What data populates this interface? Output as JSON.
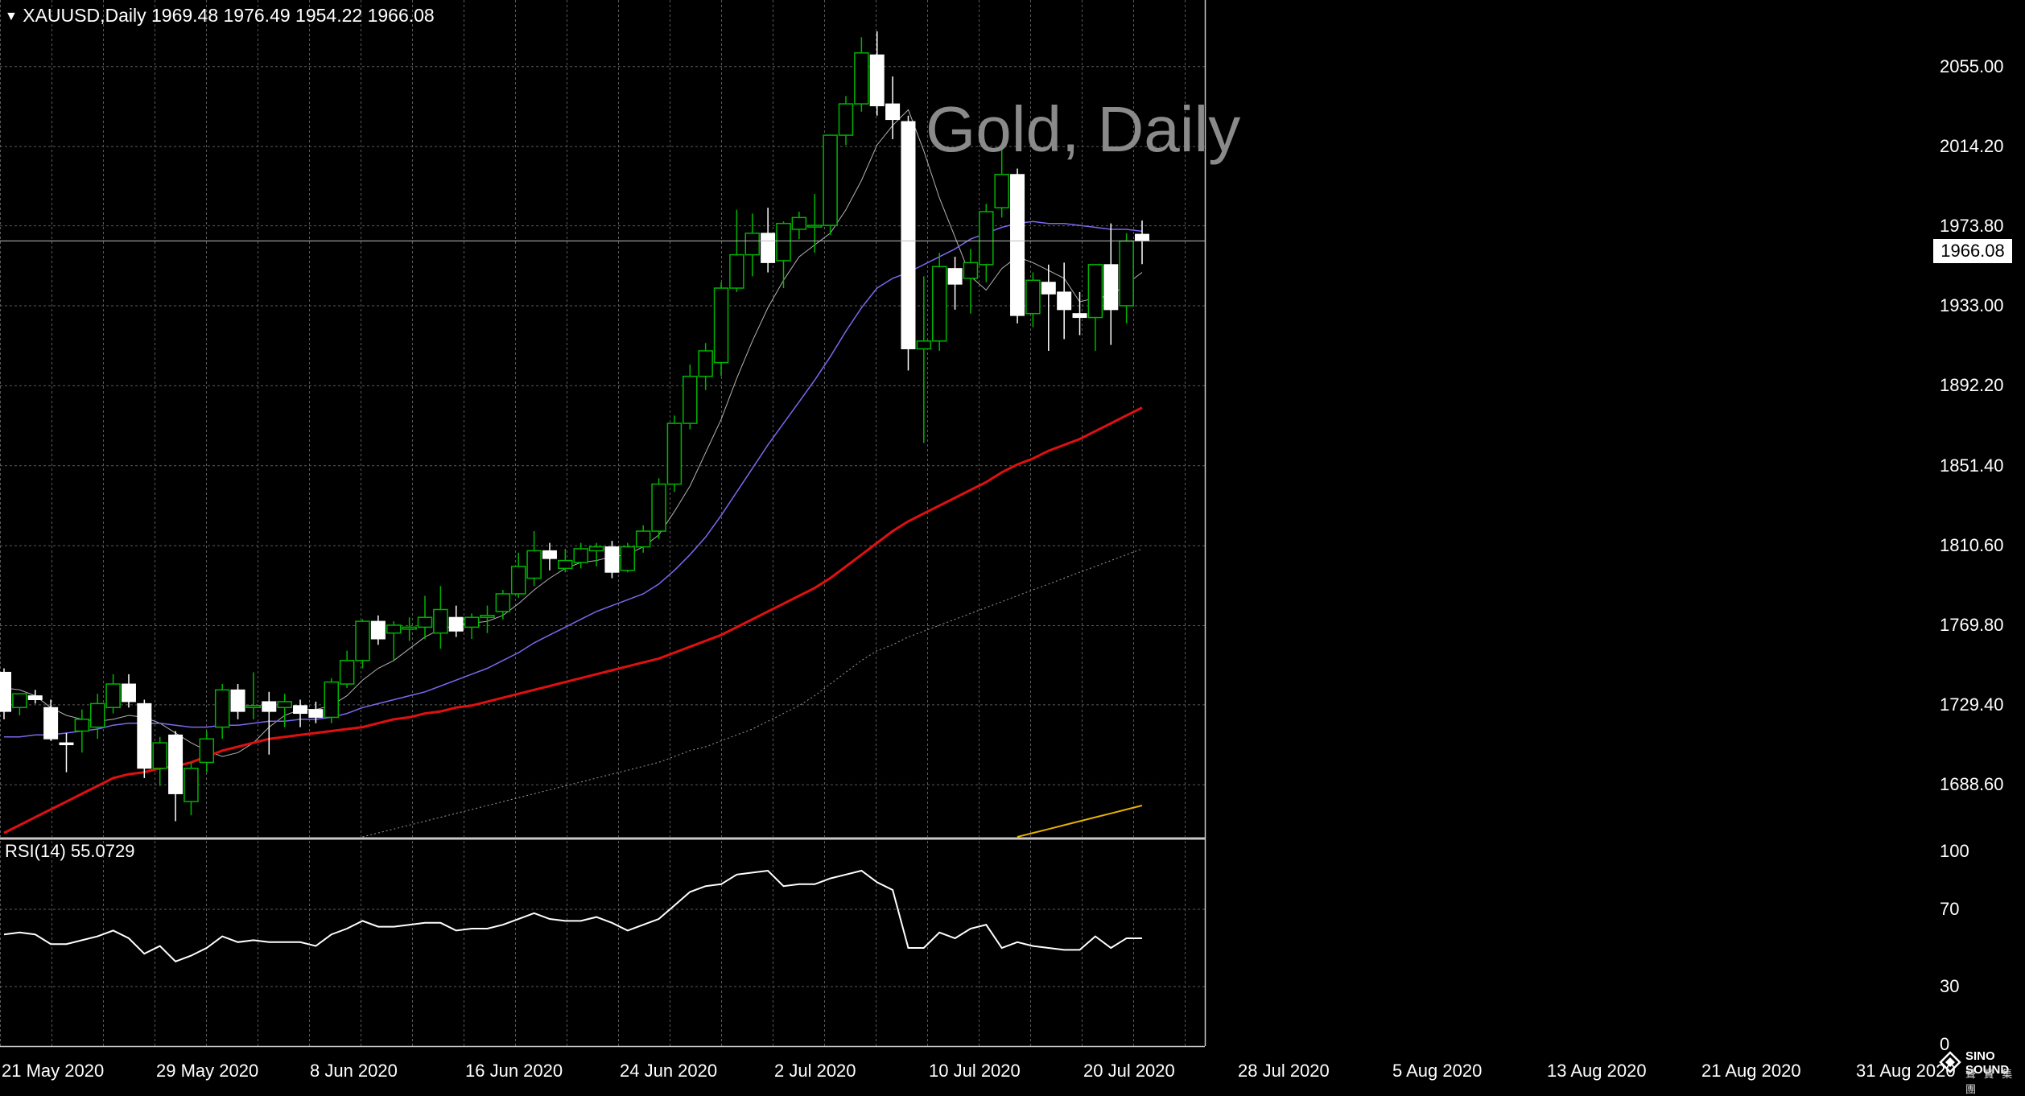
{
  "header": {
    "symbol_line": "XAUUSD,Daily  1969.48 1976.49 1954.22 1966.08"
  },
  "watermark": "Gold, Daily",
  "current_price_label": "1966.08",
  "rsi_label": "RSI(14) 55.0729",
  "logo": {
    "name": "SINO SOUND",
    "sub": "聲 寶 集 團"
  },
  "colors": {
    "background": "#000000",
    "grid": "#5a5a5a",
    "bull_candle": "#00b400",
    "bear_candle": "#ffffff",
    "ma_fast": "#b4b4b4",
    "ma_20": "#7b68ee",
    "ma_50": "#e01010",
    "ma_100": "#9a9a9a",
    "ma_200": "#e6b000",
    "rsi_line": "#ffffff"
  },
  "chart_data": [
    {
      "type": "candlestick",
      "title": "XAUUSD,Daily",
      "y_ticks": [
        "2055.00",
        "2014.20",
        "1973.80",
        "1933.00",
        "1892.20",
        "1851.40",
        "1810.60",
        "1769.80",
        "1729.40",
        "1688.60"
      ],
      "ylim": [
        1662,
        2089
      ],
      "x_ticks": [
        "21 May 2020",
        "29 May 2020",
        "8 Jun 2020",
        "16 Jun 2020",
        "24 Jun 2020",
        "2 Jul 2020",
        "10 Jul 2020",
        "20 Jul 2020",
        "28 Jul 2020",
        "5 Aug 2020",
        "13 Aug 2020",
        "21 Aug 2020",
        "31 Aug 2020"
      ],
      "candles": [
        {
          "o": 1746,
          "h": 1748,
          "l": 1722,
          "c": 1726
        },
        {
          "o": 1728,
          "h": 1735,
          "l": 1724,
          "c": 1735
        },
        {
          "o": 1734,
          "h": 1737,
          "l": 1730,
          "c": 1732
        },
        {
          "o": 1728,
          "h": 1732,
          "l": 1711,
          "c": 1712
        },
        {
          "o": 1710,
          "h": 1715,
          "l": 1695,
          "c": 1709
        },
        {
          "o": 1716,
          "h": 1727,
          "l": 1705,
          "c": 1722
        },
        {
          "o": 1718,
          "h": 1735,
          "l": 1712,
          "c": 1730
        },
        {
          "o": 1728,
          "h": 1745,
          "l": 1725,
          "c": 1740
        },
        {
          "o": 1740,
          "h": 1745,
          "l": 1728,
          "c": 1731
        },
        {
          "o": 1730,
          "h": 1732,
          "l": 1692,
          "c": 1697
        },
        {
          "o": 1697,
          "h": 1713,
          "l": 1688,
          "c": 1710
        },
        {
          "o": 1714,
          "h": 1716,
          "l": 1670,
          "c": 1684
        },
        {
          "o": 1680,
          "h": 1700,
          "l": 1673,
          "c": 1697
        },
        {
          "o": 1700,
          "h": 1716,
          "l": 1695,
          "c": 1712
        },
        {
          "o": 1718,
          "h": 1740,
          "l": 1712,
          "c": 1737
        },
        {
          "o": 1737,
          "h": 1740,
          "l": 1722,
          "c": 1726
        },
        {
          "o": 1728,
          "h": 1746,
          "l": 1722,
          "c": 1729
        },
        {
          "o": 1731,
          "h": 1736,
          "l": 1704,
          "c": 1726
        },
        {
          "o": 1728,
          "h": 1735,
          "l": 1718,
          "c": 1731
        },
        {
          "o": 1729,
          "h": 1732,
          "l": 1718,
          "c": 1725
        },
        {
          "o": 1727,
          "h": 1731,
          "l": 1720,
          "c": 1723
        },
        {
          "o": 1723,
          "h": 1743,
          "l": 1720,
          "c": 1741
        },
        {
          "o": 1740,
          "h": 1757,
          "l": 1738,
          "c": 1752
        },
        {
          "o": 1752,
          "h": 1773,
          "l": 1748,
          "c": 1772
        },
        {
          "o": 1772,
          "h": 1775,
          "l": 1760,
          "c": 1763
        },
        {
          "o": 1766,
          "h": 1772,
          "l": 1752,
          "c": 1770
        },
        {
          "o": 1768,
          "h": 1774,
          "l": 1762,
          "c": 1769
        },
        {
          "o": 1769,
          "h": 1785,
          "l": 1763,
          "c": 1774
        },
        {
          "o": 1766,
          "h": 1790,
          "l": 1758,
          "c": 1778
        },
        {
          "o": 1774,
          "h": 1780,
          "l": 1764,
          "c": 1767
        },
        {
          "o": 1769,
          "h": 1776,
          "l": 1763,
          "c": 1774
        },
        {
          "o": 1774,
          "h": 1780,
          "l": 1766,
          "c": 1775
        },
        {
          "o": 1777,
          "h": 1788,
          "l": 1773,
          "c": 1786
        },
        {
          "o": 1786,
          "h": 1807,
          "l": 1784,
          "c": 1800
        },
        {
          "o": 1794,
          "h": 1818,
          "l": 1790,
          "c": 1808
        },
        {
          "o": 1808,
          "h": 1812,
          "l": 1798,
          "c": 1804
        },
        {
          "o": 1799,
          "h": 1809,
          "l": 1797,
          "c": 1803
        },
        {
          "o": 1802,
          "h": 1812,
          "l": 1799,
          "c": 1809
        },
        {
          "o": 1808,
          "h": 1812,
          "l": 1800,
          "c": 1810
        },
        {
          "o": 1810,
          "h": 1813,
          "l": 1794,
          "c": 1797
        },
        {
          "o": 1798,
          "h": 1812,
          "l": 1797,
          "c": 1810
        },
        {
          "o": 1810,
          "h": 1821,
          "l": 1807,
          "c": 1818
        },
        {
          "o": 1818,
          "h": 1845,
          "l": 1814,
          "c": 1842
        },
        {
          "o": 1842,
          "h": 1877,
          "l": 1838,
          "c": 1873
        },
        {
          "o": 1873,
          "h": 1903,
          "l": 1870,
          "c": 1897
        },
        {
          "o": 1897,
          "h": 1914,
          "l": 1890,
          "c": 1910
        },
        {
          "o": 1904,
          "h": 1945,
          "l": 1897,
          "c": 1942
        },
        {
          "o": 1942,
          "h": 1982,
          "l": 1940,
          "c": 1959
        },
        {
          "o": 1959,
          "h": 1980,
          "l": 1948,
          "c": 1970
        },
        {
          "o": 1970,
          "h": 1983,
          "l": 1950,
          "c": 1955
        },
        {
          "o": 1956,
          "h": 1976,
          "l": 1942,
          "c": 1975
        },
        {
          "o": 1972,
          "h": 1981,
          "l": 1967,
          "c": 1978
        },
        {
          "o": 1974,
          "h": 1990,
          "l": 1960,
          "c": 1974
        },
        {
          "o": 1974,
          "h": 2020,
          "l": 1969,
          "c": 2020
        },
        {
          "o": 2020,
          "h": 2040,
          "l": 2015,
          "c": 2036
        },
        {
          "o": 2036,
          "h": 2070,
          "l": 2032,
          "c": 2062
        },
        {
          "o": 2061,
          "h": 2073,
          "l": 2030,
          "c": 2035
        },
        {
          "o": 2036,
          "h": 2050,
          "l": 2018,
          "c": 2028
        },
        {
          "o": 2027,
          "h": 2030,
          "l": 1900,
          "c": 1911
        },
        {
          "o": 1911,
          "h": 1948,
          "l": 1863,
          "c": 1915
        },
        {
          "o": 1915,
          "h": 1960,
          "l": 1910,
          "c": 1953
        },
        {
          "o": 1952,
          "h": 1958,
          "l": 1931,
          "c": 1944
        },
        {
          "o": 1947,
          "h": 1962,
          "l": 1929,
          "c": 1955
        },
        {
          "o": 1954,
          "h": 1985,
          "l": 1945,
          "c": 1981
        },
        {
          "o": 1983,
          "h": 2014,
          "l": 1978,
          "c": 2000
        },
        {
          "o": 2000,
          "h": 2003,
          "l": 1924,
          "c": 1928
        },
        {
          "o": 1929,
          "h": 1950,
          "l": 1922,
          "c": 1946
        },
        {
          "o": 1945,
          "h": 1954,
          "l": 1910,
          "c": 1939
        },
        {
          "o": 1940,
          "h": 1955,
          "l": 1916,
          "c": 1931
        },
        {
          "o": 1929,
          "h": 1940,
          "l": 1918,
          "c": 1927
        },
        {
          "o": 1927,
          "h": 1951,
          "l": 1910,
          "c": 1954
        },
        {
          "o": 1954,
          "h": 1975,
          "l": 1913,
          "c": 1931
        },
        {
          "o": 1933,
          "h": 1970,
          "l": 1924,
          "c": 1966
        },
        {
          "o": 1969.48,
          "h": 1976.49,
          "l": 1954.22,
          "c": 1966.08
        }
      ],
      "moving_averages": [
        {
          "color": "#b4b4b4",
          "width": 1,
          "values": [
            1738,
            1737,
            1734,
            1728,
            1724,
            1722,
            1721,
            1722,
            1724,
            1723,
            1720,
            1715,
            1710,
            1706,
            1703,
            1705,
            1710,
            1718,
            1724,
            1727,
            1727,
            1729,
            1734,
            1742,
            1748,
            1752,
            1758,
            1764,
            1768,
            1770,
            1771,
            1772,
            1775,
            1781,
            1788,
            1794,
            1799,
            1802,
            1803,
            1805,
            1806,
            1810,
            1816,
            1828,
            1841,
            1858,
            1875,
            1896,
            1915,
            1932,
            1946,
            1958,
            1964,
            1970,
            1982,
            1997,
            2015,
            2025,
            2033,
            2012,
            1988,
            1968,
            1948,
            1941,
            1952,
            1958,
            1955,
            1951,
            1947,
            1935,
            1937,
            1938,
            1944,
            1950
          ]
        },
        {
          "color": "#7b68ee",
          "width": 1.5,
          "values": [
            1713,
            1713,
            1714,
            1714,
            1715,
            1716,
            1717,
            1719,
            1720,
            1720,
            1720,
            1719,
            1718,
            1718,
            1719,
            1719,
            1720,
            1721,
            1721,
            1722,
            1722,
            1723,
            1725,
            1728,
            1730,
            1732,
            1734,
            1736,
            1739,
            1742,
            1745,
            1748,
            1752,
            1756,
            1761,
            1765,
            1769,
            1773,
            1777,
            1780,
            1783,
            1786,
            1791,
            1798,
            1806,
            1815,
            1826,
            1838,
            1850,
            1862,
            1873,
            1884,
            1895,
            1907,
            1920,
            1932,
            1942,
            1947,
            1950,
            1954,
            1958,
            1962,
            1967,
            1970,
            1973,
            1975,
            1976,
            1975,
            1975,
            1974,
            1973,
            1972,
            1972,
            1971
          ]
        },
        {
          "color": "#e01010",
          "width": 3,
          "values": [
            1664,
            1668,
            1672,
            1676,
            1680,
            1684,
            1688,
            1692,
            1694,
            1695,
            1697,
            1698,
            1700,
            1703,
            1706,
            1708,
            1710,
            1712,
            1713,
            1714,
            1715,
            1716,
            1717,
            1718,
            1720,
            1722,
            1723,
            1725,
            1726,
            1728,
            1729,
            1731,
            1733,
            1735,
            1737,
            1739,
            1741,
            1743,
            1745,
            1747,
            1749,
            1751,
            1753,
            1756,
            1759,
            1762,
            1765,
            1769,
            1773,
            1777,
            1781,
            1785,
            1789,
            1794,
            1800,
            1806,
            1812,
            1818,
            1823,
            1827,
            1831,
            1835,
            1839,
            1843,
            1848,
            1852,
            1855,
            1859,
            1862,
            1865,
            1869,
            1873,
            1877,
            1881
          ]
        },
        {
          "color": "#9a9a9a",
          "width": 1,
          "dash": "2,3",
          "values": [
            null,
            null,
            null,
            null,
            null,
            null,
            null,
            null,
            null,
            null,
            null,
            null,
            null,
            null,
            null,
            null,
            null,
            null,
            null,
            null,
            null,
            null,
            null,
            1662,
            1664,
            1666,
            1668,
            1670,
            1672,
            1674,
            1676,
            1678,
            1680,
            1682,
            1684,
            1686,
            1688,
            1690,
            1692,
            1694,
            1696,
            1698,
            1700,
            1703,
            1706,
            1708,
            1711,
            1714,
            1717,
            1721,
            1725,
            1729,
            1734,
            1740,
            1746,
            1752,
            1757,
            1760,
            1764,
            1767,
            1770,
            1773,
            1776,
            1779,
            1782,
            1785,
            1788,
            1791,
            1794,
            1797,
            1800,
            1803,
            1806,
            1809
          ]
        },
        {
          "color": "#e6b000",
          "width": 2,
          "values": [
            null,
            null,
            null,
            null,
            null,
            null,
            null,
            null,
            null,
            null,
            null,
            null,
            null,
            null,
            null,
            null,
            null,
            null,
            null,
            null,
            null,
            null,
            null,
            null,
            null,
            null,
            null,
            null,
            null,
            null,
            null,
            null,
            null,
            null,
            null,
            null,
            null,
            null,
            null,
            null,
            null,
            null,
            null,
            null,
            null,
            null,
            null,
            null,
            null,
            null,
            null,
            null,
            null,
            null,
            null,
            null,
            null,
            null,
            null,
            null,
            null,
            null,
            null,
            null,
            null,
            1662,
            1664,
            1666,
            1668,
            1670,
            1672,
            1674,
            1676,
            1678
          ]
        }
      ]
    },
    {
      "type": "line",
      "title": "RSI(14) 55.0729",
      "y_ticks": [
        "100",
        "70",
        "30",
        "0"
      ],
      "ylim": [
        0,
        100
      ],
      "values": [
        57,
        58,
        57,
        52,
        52,
        54,
        56,
        59,
        55,
        47,
        51,
        43,
        46,
        50,
        56,
        53,
        54,
        53,
        53,
        53,
        51,
        57,
        60,
        64,
        61,
        61,
        62,
        63,
        63,
        59,
        60,
        60,
        62,
        65,
        68,
        65,
        64,
        64,
        66,
        63,
        59,
        62,
        65,
        72,
        79,
        82,
        83,
        88,
        89,
        90,
        82,
        83,
        83,
        86,
        88,
        90,
        84,
        80,
        50,
        50,
        58,
        55,
        60,
        62,
        50,
        53,
        51,
        50,
        49,
        49,
        56,
        50,
        55,
        55
      ]
    }
  ]
}
